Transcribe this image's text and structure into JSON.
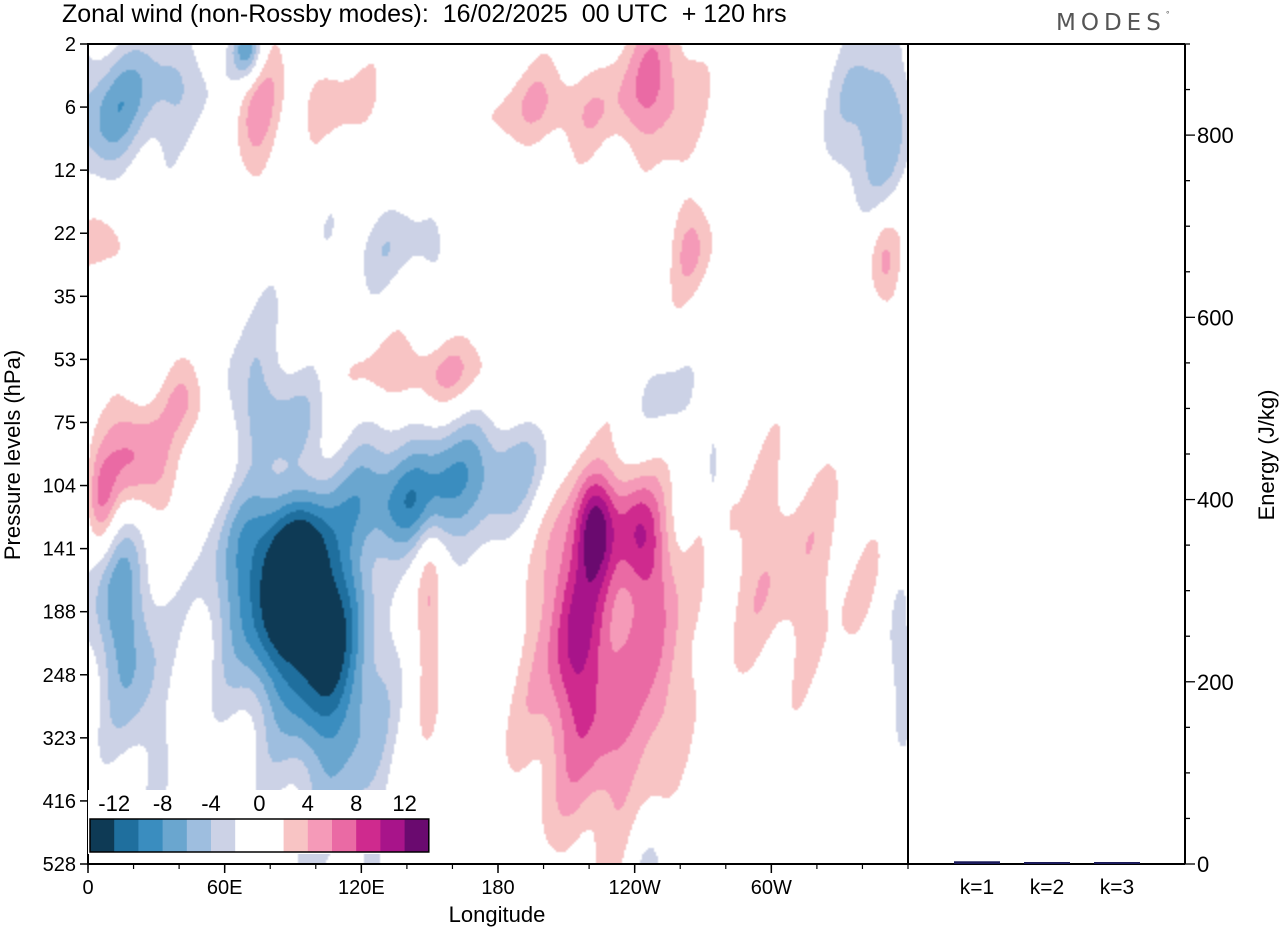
{
  "title": "Zonal wind (non-Rossby modes):  16/02/2025  00 UTC  + 120 hrs",
  "brand": "MODES",
  "brand_mark": "°",
  "colors": {
    "neg": [
      "#0e3a55",
      "#1f6f9e",
      "#3a8dbf",
      "#6aa6cf",
      "#9ebedf",
      "#ccd2e6"
    ],
    "zero": "#ffffff",
    "pos": [
      "#f8c4c4",
      "#f59ab8",
      "#ea6aa4",
      "#cf2a8e",
      "#a8148a",
      "#6a0a6f"
    ]
  },
  "chart_data": [
    {
      "type": "heatmap",
      "title": "Zonal wind (non-Rossby modes):  16/02/2025  00 UTC  + 120 hrs",
      "xlabel": "Longitude",
      "ylabel": "Pressure levels (hPa)",
      "x_ticks": [
        "0",
        "60E",
        "120E",
        "180",
        "120W",
        "60W"
      ],
      "x_tick_values": [
        0,
        60,
        120,
        180,
        240,
        300
      ],
      "xlim": [
        0,
        360
      ],
      "y_ticks": [
        "2",
        "6",
        "12",
        "22",
        "35",
        "53",
        "75",
        "104",
        "141",
        "188",
        "248",
        "323",
        "416",
        "528"
      ],
      "y_levels": [
        2,
        6,
        12,
        22,
        35,
        53,
        75,
        104,
        141,
        188,
        248,
        323,
        416,
        528
      ],
      "colorbar": {
        "labels": [
          "-12",
          "-8",
          "-4",
          "0",
          "4",
          "8",
          "12"
        ],
        "values": [
          -12,
          -8,
          -4,
          0,
          4,
          8,
          12
        ],
        "placement": "bottom-left"
      },
      "features": [
        {
          "lon": 95,
          "level_index": 8.3,
          "sx": 16,
          "sy": 2.0,
          "amp": -13,
          "rot": -0.55
        },
        {
          "lon": 75,
          "level_index": 8.9,
          "sx": 16,
          "sy": 1.2,
          "amp": -7,
          "rot": -0.2
        },
        {
          "lon": 135,
          "level_index": 7.3,
          "sx": 30,
          "sy": 0.55,
          "amp": -8,
          "rot": -0.12
        },
        {
          "lon": 170,
          "level_index": 6.6,
          "sx": 30,
          "sy": 0.55,
          "amp": -5,
          "rot": -0.08
        },
        {
          "lon": 102,
          "level_index": 10.5,
          "sx": 18,
          "sy": 2.2,
          "amp": -2.8,
          "rot": 0
        },
        {
          "lon": 15,
          "level_index": 9.1,
          "sx": 11,
          "sy": 1.6,
          "amp": -7,
          "rot": -0.3
        },
        {
          "lon": 8,
          "level_index": 1.1,
          "sx": 14,
          "sy": 0.7,
          "amp": -6,
          "rot": 0
        },
        {
          "lon": 35,
          "level_index": 0.6,
          "sx": 16,
          "sy": 0.6,
          "amp": -4,
          "rot": 0
        },
        {
          "lon": 70,
          "level_index": 0.1,
          "sx": 5,
          "sy": 0.35,
          "amp": -8,
          "rot": 0
        },
        {
          "lon": 345,
          "level_index": 1.2,
          "sx": 12,
          "sy": 1.0,
          "amp": -6,
          "rot": 0
        },
        {
          "lon": 135,
          "level_index": 3.2,
          "sx": 22,
          "sy": 0.5,
          "amp": -3,
          "rot": 0
        },
        {
          "lon": 255,
          "level_index": 5.6,
          "sx": 10,
          "sy": 0.5,
          "amp": -3,
          "rot": 0
        },
        {
          "lon": 275,
          "level_index": 7.4,
          "sx": 3,
          "sy": 1.4,
          "amp": -3.5,
          "rot": 0
        },
        {
          "lon": 358,
          "level_index": 10.0,
          "sx": 4,
          "sy": 1.0,
          "amp": -4,
          "rot": 0
        },
        {
          "lon": 245,
          "level_index": 13.0,
          "sx": 8,
          "sy": 0.7,
          "amp": -3,
          "rot": 0
        },
        {
          "lon": 18,
          "level_index": 6.6,
          "sx": 14,
          "sy": 0.7,
          "amp": 7,
          "rot": -0.2
        },
        {
          "lon": 5,
          "level_index": 7.3,
          "sx": 5,
          "sy": 0.6,
          "amp": 6,
          "rot": 0
        },
        {
          "lon": 90,
          "level_index": 7.0,
          "sx": 18,
          "sy": 0.6,
          "amp": 9,
          "rot": -0.45
        },
        {
          "lon": 150,
          "level_index": 5.2,
          "sx": 28,
          "sy": 0.4,
          "amp": 4,
          "rot": -0.25
        },
        {
          "lon": 213,
          "level_index": 8.8,
          "sx": 9,
          "sy": 1.5,
          "amp": 7,
          "rot": 0
        },
        {
          "lon": 223,
          "level_index": 7.6,
          "sx": 6,
          "sy": 0.6,
          "amp": 9,
          "rot": 0
        },
        {
          "lon": 242,
          "level_index": 7.7,
          "sx": 8,
          "sy": 0.7,
          "amp": 7,
          "rot": -0.2
        },
        {
          "lon": 232,
          "level_index": 10.2,
          "sx": 12,
          "sy": 2.0,
          "amp": 5,
          "rot": 0
        },
        {
          "lon": 252,
          "level_index": 9.8,
          "sx": 8,
          "sy": 1.4,
          "amp": 4.5,
          "rot": 0
        },
        {
          "lon": 208,
          "level_index": 10.6,
          "sx": 18,
          "sy": 1.6,
          "amp": 3.5,
          "rot": 0
        },
        {
          "lon": 305,
          "level_index": 8.3,
          "sx": 28,
          "sy": 1.3,
          "amp": 3.5,
          "rot": 0
        },
        {
          "lon": 75,
          "level_index": 1.0,
          "sx": 8,
          "sy": 0.9,
          "amp": 4.5,
          "rot": 0
        },
        {
          "lon": 110,
          "level_index": 0.9,
          "sx": 15,
          "sy": 0.45,
          "amp": 3,
          "rot": 0
        },
        {
          "lon": 205,
          "level_index": 1.0,
          "sx": 24,
          "sy": 0.5,
          "amp": 4,
          "rot": 0
        },
        {
          "lon": 250,
          "level_index": 0.6,
          "sx": 12,
          "sy": 0.8,
          "amp": 6,
          "rot": 0
        },
        {
          "lon": 265,
          "level_index": 3.2,
          "sx": 8,
          "sy": 0.6,
          "amp": 4,
          "rot": 0
        },
        {
          "lon": 8,
          "level_index": 3.2,
          "sx": 8,
          "sy": 0.4,
          "amp": 3.5,
          "rot": 0
        },
        {
          "lon": 350,
          "level_index": 3.4,
          "sx": 5,
          "sy": 0.6,
          "amp": 4.5,
          "rot": 0
        },
        {
          "lon": 150,
          "level_index": 9.5,
          "sx": 4,
          "sy": 1.4,
          "amp": 4,
          "rot": 0
        },
        {
          "lon": 45,
          "level_index": 5.7,
          "sx": 8,
          "sy": 0.5,
          "amp": 4,
          "rot": 0
        }
      ]
    },
    {
      "type": "bar",
      "categories": [
        "k=1",
        "k=2",
        "k=3"
      ],
      "values": [
        3,
        1,
        2
      ],
      "ylabel": "Energy (J/kg)",
      "y_ticks": [
        "0",
        "200",
        "400",
        "600",
        "800"
      ],
      "ylim": [
        0,
        900
      ],
      "bar_color": "#1a1a5a"
    }
  ]
}
